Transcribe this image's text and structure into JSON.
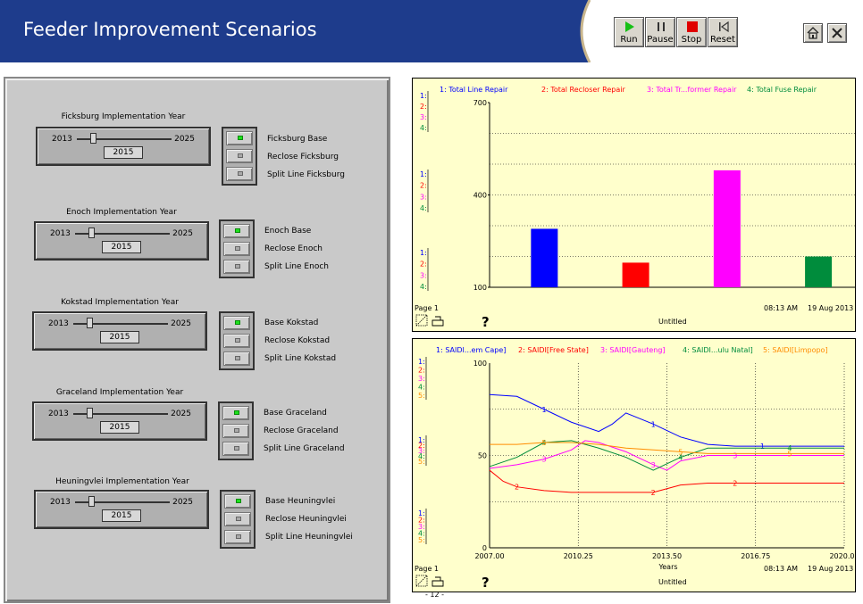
{
  "title": "Feeder Improvement Scenarios",
  "controls": [
    {
      "label": "Run",
      "icon": "play-icon"
    },
    {
      "label": "Pause",
      "icon": "pause-icon"
    },
    {
      "label": "Stop",
      "icon": "stop-icon"
    },
    {
      "label": "Reset",
      "icon": "reset-icon"
    }
  ],
  "window_buttons": {
    "home_icon": "home-icon",
    "close_icon": "close-icon"
  },
  "colors": {
    "header": "#1e3c8c",
    "red": "#ff0000",
    "blue": "#0000ff",
    "magenta": "#ff00ff",
    "green": "#008c3c",
    "orange": "#ff8c00",
    "chart_bg": "#ffffcc"
  },
  "groups": [
    {
      "title": "Ficksburg Implementation Year",
      "min": "2013",
      "max": "2025",
      "value": "2015",
      "buttons": [
        "Ficksburg Base",
        "Reclose Ficksburg",
        "Split Line Ficksburg"
      ],
      "active": 0
    },
    {
      "title": "Enoch Implementation Year",
      "min": "2013",
      "max": "2025",
      "value": "2015",
      "buttons": [
        "Enoch Base",
        "Reclose Enoch",
        "Split Line Enoch"
      ],
      "active": 0
    },
    {
      "title": "Kokstad Implementation Year",
      "min": "2013",
      "max": "2025",
      "value": "2015",
      "buttons": [
        "Base Kokstad",
        "Reclose Kokstad",
        "Split Line Kokstad"
      ],
      "active": 0
    },
    {
      "title": "Graceland Implementation Year",
      "min": "2013",
      "max": "2025",
      "value": "2015",
      "buttons": [
        "Base Graceland",
        "Reclose Graceland",
        "Split Line Graceland"
      ],
      "active": 0
    },
    {
      "title": "Heuningvlei Implementation Year",
      "min": "2013",
      "max": "2025",
      "value": "2015",
      "buttons": [
        "Base Heuningvlei",
        "Reclose Heuningvlei",
        "Split Line Heuningvlei"
      ],
      "active": 0
    }
  ],
  "chart_data": [
    {
      "type": "bar",
      "legend": [
        "1: Total Line Repair",
        "2: Total Recloser Repair",
        "3: Total Tr...former Repair",
        "4: Total Fuse Repair"
      ],
      "categories": [
        "1",
        "2",
        "3",
        "4"
      ],
      "values": [
        290,
        180,
        480,
        200
      ],
      "ylim": [
        100,
        700
      ],
      "yticks": [
        "100",
        "400",
        "700"
      ],
      "axis_markers": [
        "1:",
        "2:",
        "3:",
        "4:"
      ],
      "page": "Page 1",
      "name": "Untitled",
      "time": "08:13 AM",
      "date": "19 Aug 2013",
      "help": "?"
    },
    {
      "type": "line",
      "legend": [
        "1: SAIDI...em Cape]",
        "2: SAIDI[Free State]",
        "3: SAIDI[Gauteng]",
        "4: SAIDI...ulu Natal]",
        "5: SAIDI[Limpopo]"
      ],
      "xlim": [
        2007,
        2020
      ],
      "ylim": [
        0,
        100
      ],
      "xticks": [
        "2007.00",
        "2010.25",
        "2013.50",
        "2016.75",
        "2020.00"
      ],
      "yticks": [
        "0",
        "50",
        "100"
      ],
      "xlabel": "Years",
      "axis_markers": [
        "1:",
        "2:",
        "3:",
        "4:",
        "5:"
      ],
      "series": [
        {
          "name": "1",
          "x": [
            2007,
            2008,
            2009,
            2010,
            2011,
            2011.5,
            2012,
            2013,
            2014,
            2015,
            2016,
            2017,
            2018,
            2019,
            2020
          ],
          "y": [
            83,
            82,
            75,
            68,
            63,
            67,
            73,
            67,
            60,
            56,
            55,
            55,
            55,
            55,
            55
          ]
        },
        {
          "name": "2",
          "x": [
            2007,
            2007.5,
            2008,
            2009,
            2010,
            2011,
            2012,
            2013,
            2013.5,
            2014,
            2015,
            2016,
            2017,
            2018,
            2019,
            2020
          ],
          "y": [
            42,
            36,
            33,
            31,
            30,
            30,
            30,
            30,
            32,
            34,
            35,
            35,
            35,
            35,
            35,
            35
          ]
        },
        {
          "name": "3",
          "x": [
            2007,
            2008,
            2009,
            2010,
            2010.5,
            2011,
            2012,
            2013,
            2013.5,
            2014,
            2015,
            2016,
            2017,
            2018,
            2019,
            2020
          ],
          "y": [
            43,
            45,
            48,
            53,
            58,
            57,
            52,
            45,
            42,
            47,
            50,
            50,
            50,
            50,
            50,
            50
          ]
        },
        {
          "name": "4",
          "x": [
            2007,
            2008,
            2009,
            2010,
            2011,
            2012,
            2013,
            2014,
            2015,
            2016,
            2017,
            2018,
            2019,
            2020
          ],
          "y": [
            44,
            49,
            57,
            58,
            54,
            49,
            42,
            49,
            54,
            54,
            54,
            54,
            54,
            54
          ]
        },
        {
          "name": "5",
          "x": [
            2007,
            2008,
            2009,
            2010,
            2011,
            2012,
            2013,
            2014,
            2015,
            2016,
            2017,
            2018,
            2019,
            2020
          ],
          "y": [
            56,
            56,
            57,
            57,
            56,
            54,
            53,
            52,
            51,
            51,
            51,
            51,
            51,
            51
          ]
        }
      ],
      "page": "Page 1",
      "name": "Untitled",
      "time": "08:13 AM",
      "date": "19 Aug 2013",
      "help": "?",
      "page_number": "- 12 -"
    }
  ]
}
